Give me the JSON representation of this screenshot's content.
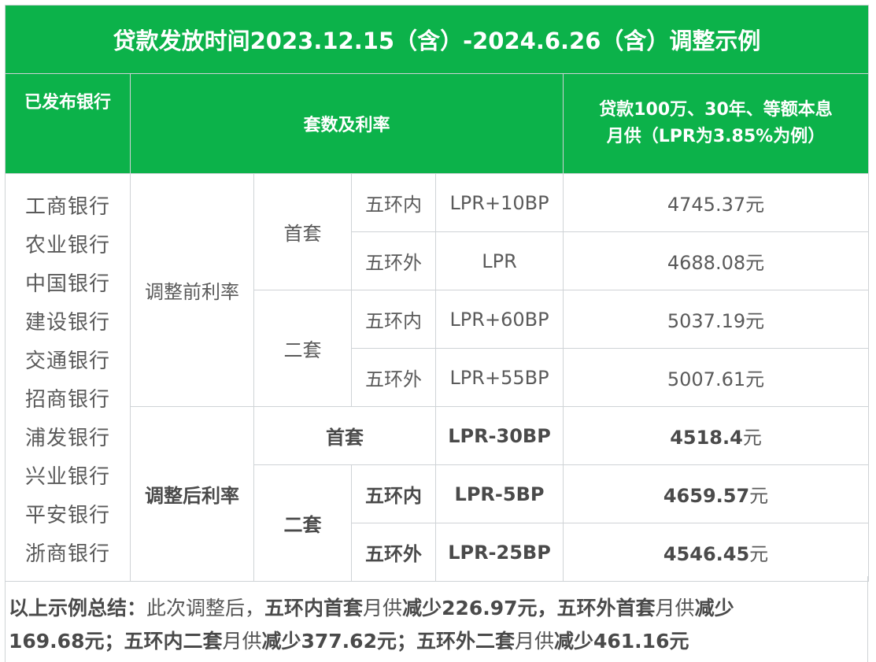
{
  "title": "贷款发放时间2023.12.15（含）-2024.6.26（含）调整示例",
  "header": {
    "banks": "已发布银行",
    "sets_rates": "套数及利率",
    "payment_line1": "贷款100万、30年、等额本息",
    "payment_line2": "月供（LPR为3.85%为例）"
  },
  "banks": [
    "工商银行",
    "农业银行",
    "中国银行",
    "建设银行",
    "交通银行",
    "招商银行",
    "浦发银行",
    "兴业银行",
    "平安银行",
    "浙商银行"
  ],
  "before": {
    "label": "调整前利率",
    "first": {
      "label": "首套",
      "inner": {
        "zone": "五环内",
        "rate": "LPR+10BP",
        "amount": "4745.37",
        "unit": "元"
      },
      "outer": {
        "zone": "五环外",
        "rate": "LPR",
        "amount": "4688.08",
        "unit": "元"
      }
    },
    "second": {
      "label": "二套",
      "inner": {
        "zone": "五环内",
        "rate": "LPR+60BP",
        "amount": "5037.19",
        "unit": "元"
      },
      "outer": {
        "zone": "五环外",
        "rate": "LPR+55BP",
        "amount": "5007.61",
        "unit": "元"
      }
    }
  },
  "after": {
    "label": "调整后利率",
    "first": {
      "label": "首套",
      "rate": "LPR-30BP",
      "amount": "4518.4",
      "unit": "元"
    },
    "second": {
      "label": "二套",
      "inner": {
        "zone": "五环内",
        "rate": "LPR-5BP",
        "amount": "4659.57",
        "unit": "元"
      },
      "outer": {
        "zone": "五环外",
        "rate": "LPR-25BP",
        "amount": "4546.45",
        "unit": "元"
      }
    }
  },
  "summary": {
    "lead": "以上示例总结：",
    "p1": "此次调整后，",
    "p2": "五环内首套",
    "p3": "月供",
    "p4": "减少226.97元，五环外首套",
    "p5": "月供",
    "p6": "减少",
    "p7": "169.68元；五环内二套",
    "p8": "月供",
    "p9": "减少377.62元；五环外二套",
    "p10": "月供",
    "p11": "减少461.16元"
  }
}
